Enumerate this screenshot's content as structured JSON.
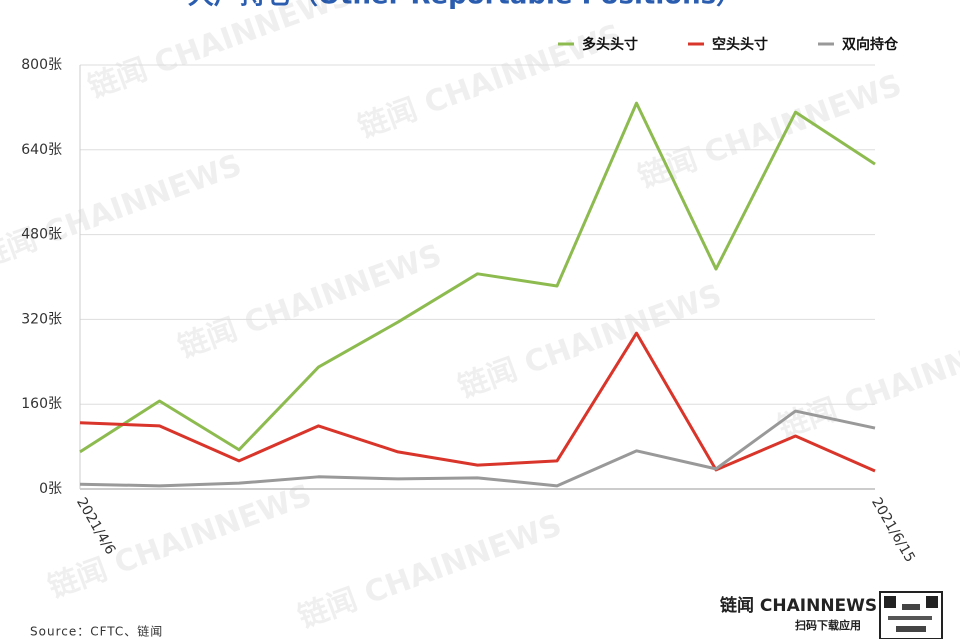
{
  "chart_data": {
    "type": "line",
    "title": "大户持仓（Other Reportable Positions）",
    "x": [
      "2021/4/6",
      null,
      null,
      null,
      null,
      null,
      null,
      null,
      null,
      null,
      "2021/6/15"
    ],
    "series": [
      {
        "name": "多头头寸",
        "color": "#8dbb4f",
        "values": [
          70,
          166,
          74,
          230,
          315,
          406,
          383,
          728,
          415,
          711,
          613
        ]
      },
      {
        "name": "空头头寸",
        "color": "#d9352a",
        "values": [
          125,
          119,
          53,
          119,
          70,
          45,
          53,
          294,
          36,
          100,
          34
        ]
      },
      {
        "name": "双向持仓",
        "color": "#999999",
        "values": [
          9,
          6,
          11,
          23,
          19,
          21,
          6,
          72,
          38,
          147,
          115
        ]
      }
    ],
    "ylim": [
      0,
      800
    ],
    "yticks": [
      {
        "value": 0,
        "label": "0张"
      },
      {
        "value": 160,
        "label": "160张"
      },
      {
        "value": 320,
        "label": "320张"
      },
      {
        "value": 480,
        "label": "480张"
      },
      {
        "value": 640,
        "label": "640张"
      },
      {
        "value": 800,
        "label": "800张"
      }
    ],
    "grid": true,
    "legend": "top-right",
    "source": "Source：CFTC、链闻",
    "brand": "链闻 CHAINNEWS",
    "brand_sub": "扫码下载应用",
    "watermark": "链闻 CHAINNEWS"
  }
}
